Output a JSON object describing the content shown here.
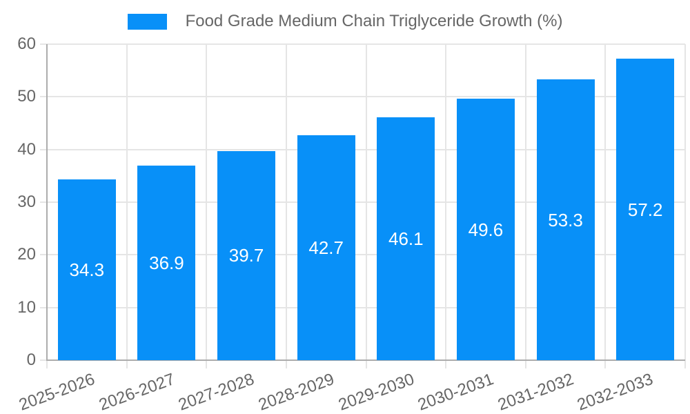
{
  "chart_data": {
    "type": "bar",
    "title": "",
    "legend": {
      "position": "top",
      "label": "Food Grade Medium Chain Triglyceride Growth (%)"
    },
    "categories": [
      "2025-2026",
      "2026-2027",
      "2027-2028",
      "2028-2029",
      "2029-2030",
      "2030-2031",
      "2031-2032",
      "2032-2033"
    ],
    "series": [
      {
        "name": "Food Grade Medium Chain Triglyceride Growth (%)",
        "values": [
          34.3,
          36.9,
          39.7,
          42.7,
          46.1,
          49.6,
          53.3,
          57.2
        ]
      }
    ],
    "value_labels": [
      "34.3",
      "36.9",
      "39.7",
      "42.7",
      "46.1",
      "49.6",
      "53.3",
      "57.2"
    ],
    "xlabel": "",
    "ylabel": "",
    "ylim": [
      0,
      60
    ],
    "yticks": [
      0,
      10,
      20,
      30,
      40,
      50,
      60
    ],
    "grid": "horizontal-and-vertical-boundaries",
    "xtick_rotation_deg": 20,
    "colors": {
      "bar": "#0890F8",
      "grid": "#E5E5E5",
      "axis_border": "#ACACAC",
      "tick_label": "#666666",
      "legend_text": "#666666",
      "value_label": "#FFFFFF"
    }
  }
}
